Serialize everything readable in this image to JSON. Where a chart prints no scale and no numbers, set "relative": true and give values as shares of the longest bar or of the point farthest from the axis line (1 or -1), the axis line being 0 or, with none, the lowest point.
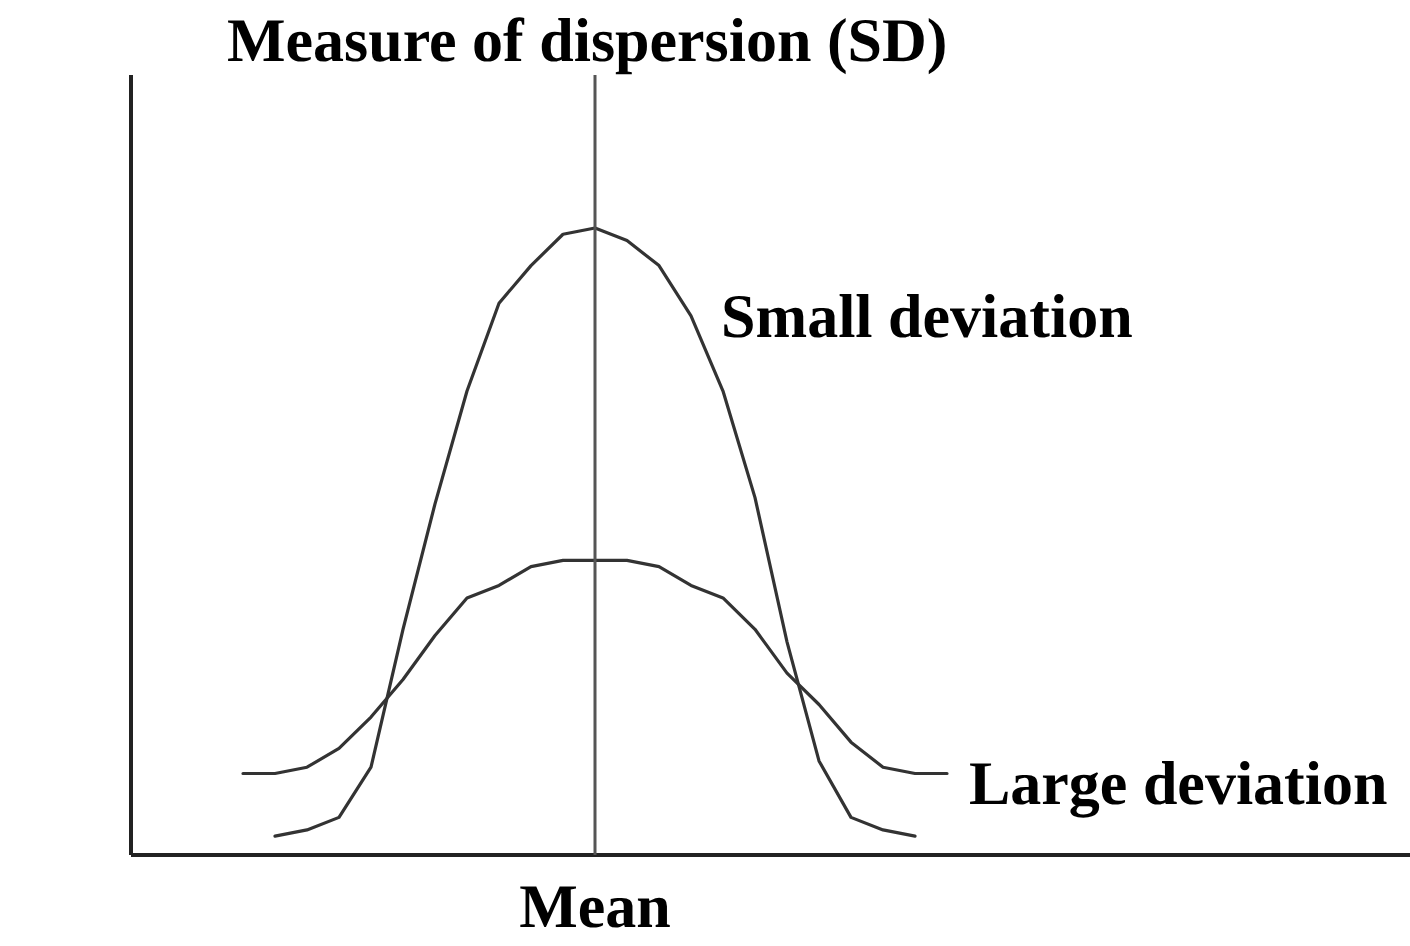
{
  "chart_data": {
    "type": "line",
    "title": "Measure of dispersion (SD)",
    "relative": true,
    "categories": [
      null,
      null,
      null,
      null,
      null,
      null,
      null,
      null,
      null,
      null,
      null,
      null,
      null,
      null,
      null,
      null,
      null,
      null,
      null,
      null,
      null,
      null,
      null,
      null,
      null,
      null,
      null,
      null,
      null,
      null,
      null,
      null,
      null,
      null,
      null,
      null,
      null,
      null,
      null,
      null
    ],
    "series": [
      {
        "name": "Small deviation",
        "color": "#333333",
        "values": [
          null,
          null,
          null,
          null,
          0.03,
          0.04,
          0.06,
          0.14,
          0.36,
          0.56,
          0.74,
          0.88,
          0.94,
          0.99,
          1,
          0.98,
          0.94,
          0.86,
          0.74,
          0.57,
          0.34,
          0.15,
          0.06,
          0.04,
          0.03,
          null,
          null,
          null,
          null,
          null,
          null,
          null,
          null,
          null,
          null,
          null,
          null,
          null,
          null,
          null
        ]
      },
      {
        "name": "Large deviation",
        "color": "#333333",
        "values": [
          null,
          null,
          null,
          0.13,
          0.13,
          0.14,
          0.17,
          0.22,
          0.28,
          0.35,
          0.41,
          0.43,
          0.46,
          0.47,
          0.47,
          0.47,
          0.46,
          0.43,
          0.41,
          0.36,
          0.29,
          0.24,
          0.18,
          0.14,
          0.13,
          0.13,
          null,
          null,
          null,
          null,
          null,
          null,
          null,
          null,
          null,
          null,
          null,
          null,
          null,
          null
        ]
      }
    ],
    "ref_lines": [
      {
        "axis": "x",
        "value": "Mean",
        "color": "#555555"
      }
    ],
    "line_style": "solid"
  }
}
